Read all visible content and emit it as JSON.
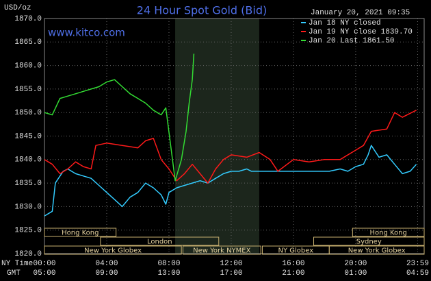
{
  "chart_data": {
    "type": "line",
    "title": "24 Hour Spot Gold (Bid)",
    "website": "www.kitco.com",
    "timestamp": "January 20, 2021 09:35",
    "y_label": "USD/oz",
    "x_row_labels": [
      "NY Time",
      "GMT"
    ],
    "xlim": [
      0,
      24.4
    ],
    "ylim": [
      1820,
      1870
    ],
    "xticks": [
      {
        "value": 0,
        "label": "00:00"
      },
      {
        "value": 4,
        "label": "04:00"
      },
      {
        "value": 8,
        "label": "08:00"
      },
      {
        "value": 12,
        "label": "12:00"
      },
      {
        "value": 16,
        "label": "16:00"
      },
      {
        "value": 20,
        "label": "20:00"
      },
      {
        "value": 23.98,
        "label": "23:59"
      }
    ],
    "gmt_labels": [
      "05:00",
      "09:00",
      "13:00",
      "17:00",
      "21:00",
      "01:00",
      "04:59"
    ],
    "yticks": [
      {
        "value": 1820,
        "label": "1820.0"
      },
      {
        "value": 1825,
        "label": "1825.0"
      },
      {
        "value": 1830,
        "label": "1830.0"
      },
      {
        "value": 1835,
        "label": "1835.0"
      },
      {
        "value": 1840,
        "label": "1840.0"
      },
      {
        "value": 1845,
        "label": "1845.0"
      },
      {
        "value": 1850,
        "label": "1850.0"
      },
      {
        "value": 1855,
        "label": "1855.0"
      },
      {
        "value": 1860,
        "label": "1860.0"
      },
      {
        "value": 1865,
        "label": "1865.0"
      },
      {
        "value": 1870,
        "label": "1870.0"
      }
    ],
    "grid": true,
    "legend": "top-right",
    "highlight_range": [
      8.4,
      13.8
    ],
    "series": [
      {
        "name": "Jan 18 NY closed",
        "color": "#33ccff",
        "x": [
          0,
          0.5,
          0.7,
          1.2,
          1.5,
          2,
          2.5,
          3,
          3.5,
          4,
          4.5,
          5,
          5.5,
          6,
          6.5,
          7,
          7.5,
          7.8,
          8,
          8.5,
          9,
          9.5,
          10,
          10.5,
          11,
          11.5,
          12,
          12.5,
          13,
          13.3,
          18.3,
          19,
          19.5,
          20,
          20.5,
          20.8,
          21,
          21.5,
          22,
          22.5,
          23,
          23.5,
          23.9
        ],
        "values": [
          1828,
          1829,
          1835,
          1837.5,
          1838,
          1837,
          1836.5,
          1836,
          1834.5,
          1833,
          1831.5,
          1830,
          1832,
          1833,
          1835,
          1834,
          1832.5,
          1830.5,
          1833,
          1834,
          1834.5,
          1835,
          1835.5,
          1835,
          1836,
          1837,
          1837.5,
          1837.5,
          1838,
          1837.5,
          1837.5,
          1838,
          1837.5,
          1838.5,
          1839,
          1841,
          1843,
          1840.5,
          1841,
          1839,
          1837,
          1837.5,
          1839
        ]
      },
      {
        "name": "Jan 19 NY close 1839.70",
        "color": "#ff1a1a",
        "x": [
          0,
          0.5,
          1,
          1.5,
          2,
          2.5,
          3,
          3.3,
          4,
          5,
          6,
          6.5,
          7,
          7.5,
          8,
          8.5,
          9,
          9.5,
          10,
          10.5,
          11,
          11.5,
          12,
          13,
          13.8,
          14.5,
          15,
          16,
          17,
          18,
          19,
          20,
          20.5,
          21,
          22,
          22.5,
          23,
          23.9
        ],
        "values": [
          1840,
          1839,
          1837,
          1838,
          1839.5,
          1838.5,
          1838,
          1843,
          1843.5,
          1843,
          1842.5,
          1844,
          1844.5,
          1840,
          1838,
          1835.5,
          1837,
          1839,
          1837,
          1835,
          1838,
          1840,
          1841,
          1840.5,
          1841.5,
          1840,
          1837.5,
          1840,
          1839.5,
          1840,
          1840,
          1842,
          1843,
          1846,
          1846.5,
          1850,
          1849,
          1850.5
        ]
      },
      {
        "name": "Jan 20 Last 1861.50",
        "color": "#33dd33",
        "x": [
          0,
          0.5,
          1,
          1.5,
          2,
          2.5,
          3,
          3.5,
          4,
          4.5,
          5,
          5.5,
          6,
          6.5,
          7,
          7.5,
          7.8,
          8.4,
          8.8,
          9.1,
          9.3,
          9.5,
          9.6
        ],
        "values": [
          1850,
          1849.5,
          1853,
          1853.5,
          1854,
          1854.5,
          1855,
          1855.5,
          1856.5,
          1857,
          1855.5,
          1854,
          1853,
          1852,
          1850.5,
          1849.5,
          1851,
          1835.5,
          1840,
          1846,
          1852,
          1857,
          1862.5
        ]
      }
    ],
    "sessions": [
      [
        {
          "label": "Hong Kong",
          "start": 0,
          "end": 4.6
        },
        {
          "label": "Hong Kong",
          "start": 19.8,
          "end": 24.4
        }
      ],
      [
        {
          "label": "London",
          "start": 3.6,
          "end": 11.2
        },
        {
          "label": "Sydney",
          "start": 17.3,
          "end": 24.4
        }
      ],
      [
        {
          "label": "New York Globex",
          "start": 0,
          "end": 8.8
        },
        {
          "label": "New York NYMEX",
          "start": 8.9,
          "end": 13.9
        },
        {
          "label": "NY Globex",
          "start": 14.0,
          "end": 18.3
        },
        {
          "label": "New York Globex",
          "start": 18.3,
          "end": 24.4
        }
      ]
    ]
  }
}
